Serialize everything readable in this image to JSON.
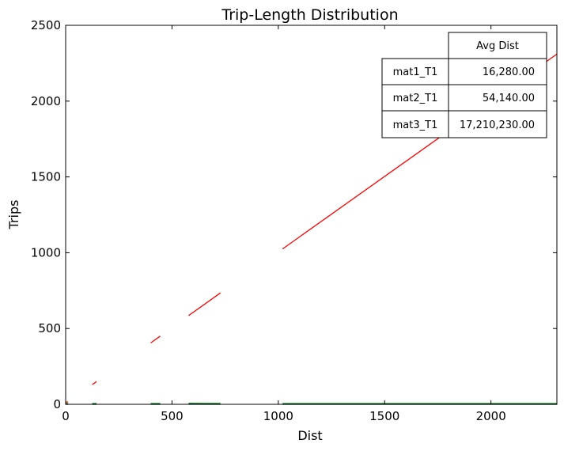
{
  "chart_data": {
    "type": "line",
    "title": "Trip-Length Distribution",
    "xlabel": "Dist",
    "ylabel": "Trips",
    "xlim": [
      0,
      2310
    ],
    "ylim": [
      0,
      2500
    ],
    "xticks": [
      0,
      500,
      1000,
      1500,
      2000
    ],
    "yticks": [
      0,
      500,
      1000,
      1500,
      2000,
      2500
    ],
    "grid": false,
    "series": [
      {
        "name": "mat1_T1",
        "color": "#0000ff",
        "segments": [
          [
            [
              0,
              0
            ],
            [
              12,
              0
            ]
          ],
          [
            [
              125,
              0
            ],
            [
              145,
              0
            ]
          ],
          [
            [
              400,
              0
            ],
            [
              445,
              0
            ]
          ],
          [
            [
              578,
              0
            ],
            [
              728,
              0
            ]
          ],
          [
            [
              1020,
              0
            ],
            [
              2310,
              0
            ]
          ]
        ]
      },
      {
        "name": "mat2_T1",
        "color": "#008000",
        "segments": [
          [
            [
              0,
              5
            ],
            [
              12,
              5
            ]
          ],
          [
            [
              125,
              5
            ],
            [
              145,
              5
            ]
          ],
          [
            [
              400,
              5
            ],
            [
              445,
              5
            ]
          ],
          [
            [
              578,
              7
            ],
            [
              728,
              6
            ]
          ],
          [
            [
              1020,
              5
            ],
            [
              2310,
              5
            ]
          ]
        ]
      },
      {
        "name": "mat3_T1",
        "color": "#ff0000",
        "segments": [
          [
            [
              0,
              15
            ],
            [
              12,
              15
            ]
          ],
          [
            [
              125,
              130
            ],
            [
              145,
              150
            ]
          ],
          [
            [
              400,
              405
            ],
            [
              445,
              450
            ]
          ],
          [
            [
              578,
              585
            ],
            [
              728,
              735
            ]
          ],
          [
            [
              1020,
              1025
            ],
            [
              2310,
              2310
            ]
          ]
        ]
      }
    ],
    "table": {
      "column_header": "Avg Dist",
      "rows": [
        {
          "label": "mat1_T1",
          "value": "16,280.00",
          "color": "#0000ff"
        },
        {
          "label": "mat2_T1",
          "value": "54,140.00",
          "color": "#008000"
        },
        {
          "label": "mat3_T1",
          "value": "17,210,230.00",
          "color": "#ff0000"
        }
      ]
    }
  }
}
